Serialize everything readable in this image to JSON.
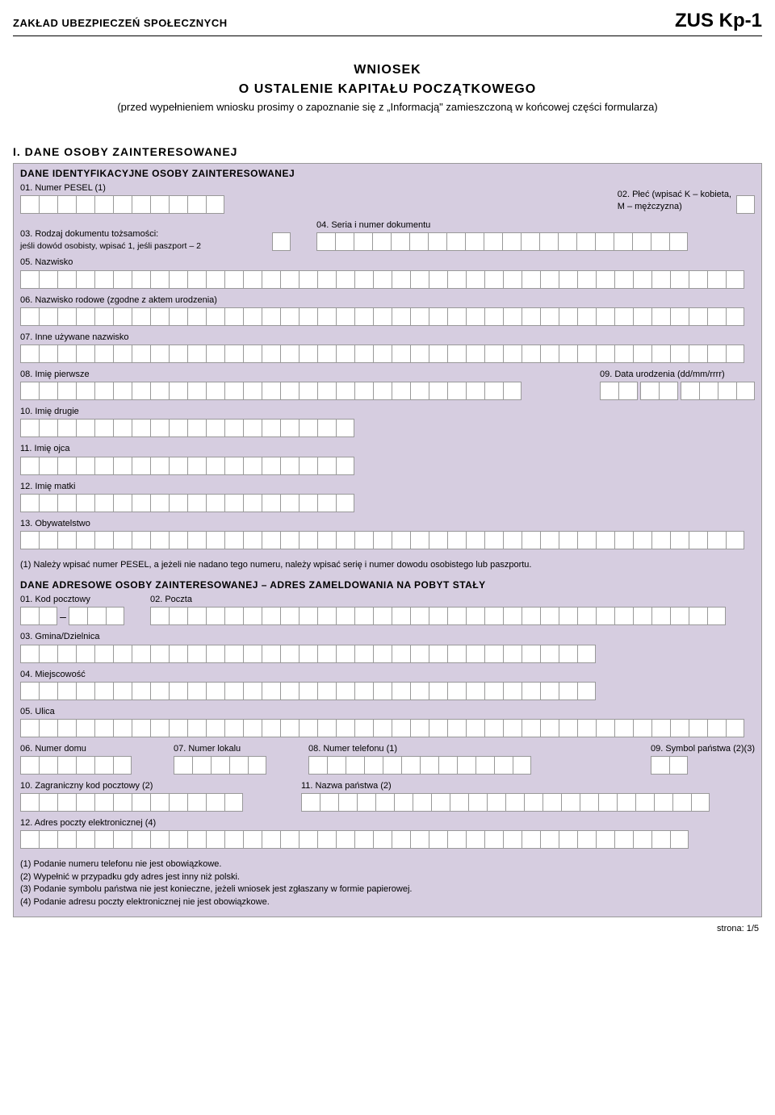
{
  "header": {
    "org": "ZAKŁAD UBEZPIECZEŃ SPOŁECZNYCH",
    "code": "ZUS Kp-1"
  },
  "title": {
    "line1": "WNIOSEK",
    "line2": "O USTALENIE KAPITAŁU POCZĄTKOWEGO",
    "sub": "(przed wypełnieniem wniosku prosimy o zapoznanie się z „Informacją\" zamieszczoną w końcowej części formularza)"
  },
  "section1": {
    "roman": "I. DANE OSOBY ZAINTERESOWANEJ",
    "id_header": "DANE IDENTYFIKACYJNE OSOBY ZAINTERESOWANEJ",
    "f01": "01. Numer PESEL (1)",
    "f02": "02. Płeć (wpisać K – kobieta,",
    "f02b": "M – mężczyzna)",
    "f03": "03. Rodzaj dokumentu tożsamości:",
    "f03hint": "jeśli dowód osobisty, wpisać 1, jeśli paszport – 2",
    "f04": "04. Seria i numer dokumentu",
    "f05": "05. Nazwisko",
    "f06": "06. Nazwisko rodowe (zgodne z aktem urodzenia)",
    "f07": "07. Inne używane nazwisko",
    "f08": "08. Imię pierwsze",
    "f09": "09. Data urodzenia (dd/mm/rrrr)",
    "f10": "10. Imię drugie",
    "f11": "11. Imię ojca",
    "f12": "12. Imię matki",
    "f13": "13. Obywatelstwo",
    "note1": "(1) Należy wpisać numer PESEL, a jeżeli nie nadano tego numeru, należy wpisać serię i numer dowodu osobistego lub paszportu.",
    "addr_header": "DANE ADRESOWE OSOBY ZAINTERESOWANEJ – ADRES ZAMELDOWANIA NA POBYT STAŁY",
    "a01": "01. Kod pocztowy",
    "a02": "02. Poczta",
    "a03": "03. Gmina/Dzielnica",
    "a04": "04. Miejscowość",
    "a05": "05. Ulica",
    "a06": "06. Numer domu",
    "a07": "07. Numer lokalu",
    "a08": "08. Numer telefonu (1)",
    "a09": "09. Symbol państwa (2)(3)",
    "a10": "10. Zagraniczny kod pocztowy (2)",
    "a11": "11. Nazwa państwa (2)",
    "a12": "12. Adres poczty elektronicznej (4)",
    "fn1": "(1) Podanie numeru telefonu nie jest obowiązkowe.",
    "fn2": "(2) Wypełnić w przypadku gdy adres jest inny niż polski.",
    "fn3": "(3) Podanie symbolu państwa nie jest konieczne, jeżeli wniosek jest zgłaszany w formie papierowej.",
    "fn4": "(4) Podanie adresu poczty elektronicznej nie jest obowiązkowe."
  },
  "pagenum": "strona: 1/5",
  "colors": {
    "panel_bg": "#d6cde0",
    "cell_bg": "#ffffff",
    "border": "#999999"
  }
}
